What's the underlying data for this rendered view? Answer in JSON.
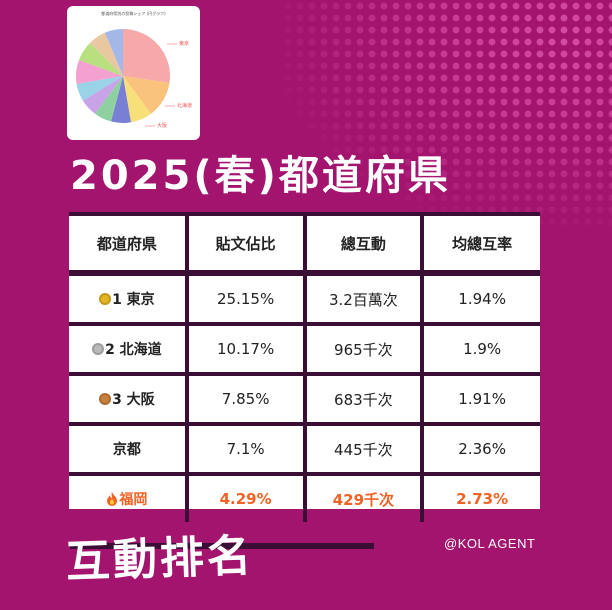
{
  "thumbnail": {
    "title": "都道府県別の投稿シェア (円グラフ)",
    "label_tokyo": "東京",
    "label_hokkaido": "北海道",
    "label_osaka": "大阪"
  },
  "title": "2025(春)都道府県",
  "table": {
    "headers": [
      "都道府県",
      "貼文佔比",
      "總互動",
      "均總互率"
    ],
    "rows": [
      {
        "prefecture": "1 東京",
        "share": "25.15%",
        "interactions": "3.2百萬次",
        "rate": "1.94%",
        "marker": "gold",
        "highlight": false
      },
      {
        "prefecture": "2 北海道",
        "share": "10.17%",
        "interactions": "965千次",
        "rate": "1.9%",
        "marker": "silver",
        "highlight": false
      },
      {
        "prefecture": "3 大阪",
        "share": "7.85%",
        "interactions": "683千次",
        "rate": "1.91%",
        "marker": "bronze",
        "highlight": false
      },
      {
        "prefecture": "京都",
        "share": "7.1%",
        "interactions": "445千次",
        "rate": "2.36%",
        "marker": "",
        "highlight": false
      },
      {
        "prefecture": "福岡",
        "share": "4.29%",
        "interactions": "429千次",
        "rate": "2.73%",
        "marker": "fire",
        "highlight": true
      }
    ]
  },
  "credit": "@KOL AGENT",
  "subtitle": "互動排名",
  "colors": {
    "background": "#a3146f",
    "border": "#3a0e35",
    "highlight": "#f26224"
  }
}
